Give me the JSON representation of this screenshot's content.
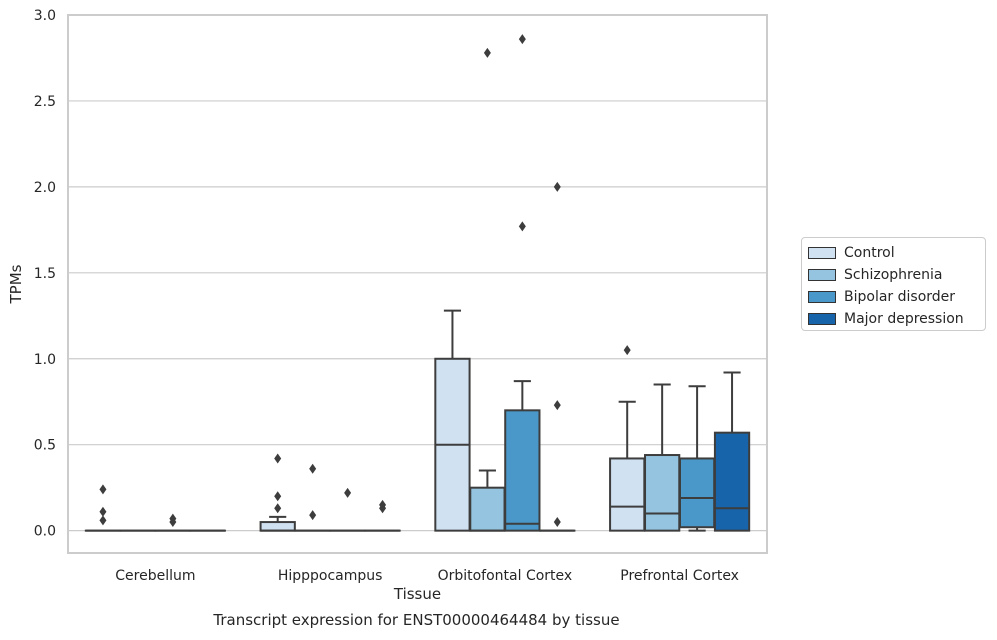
{
  "caption": "Transcript expression for ENST00000464484 by tissue",
  "chart_data": {
    "type": "box",
    "xlabel": "Tissue",
    "ylabel": "TPMs",
    "ylim": [
      -0.13,
      3.0
    ],
    "yticks": [
      "0.0",
      "0.5",
      "1.0",
      "1.5",
      "2.0",
      "2.5",
      "3.0"
    ],
    "grid": "horizontal",
    "legend_position": "right",
    "categories": [
      "Cerebellum",
      "Hipppocampus",
      "Orbitofontal Cortex",
      "Prefrontal Cortex"
    ],
    "series": [
      {
        "name": "Control",
        "color": "#d0e1f2",
        "boxes": [
          {
            "q1": 0,
            "median": 0,
            "q3": 0,
            "whisker_low": 0,
            "whisker_high": 0,
            "outliers": [
              0.24,
              0.11,
              0.06
            ]
          },
          {
            "q1": 0,
            "median": 0,
            "q3": 0.05,
            "whisker_low": 0,
            "whisker_high": 0.08,
            "outliers": [
              0.42,
              0.2,
              0.13
            ]
          },
          {
            "q1": 0,
            "median": 0.5,
            "q3": 1.0,
            "whisker_low": 0,
            "whisker_high": 1.28,
            "outliers": []
          },
          {
            "q1": 0,
            "median": 0.14,
            "q3": 0.42,
            "whisker_low": 0,
            "whisker_high": 0.75,
            "outliers": [
              1.05
            ]
          }
        ]
      },
      {
        "name": "Schizophrenia",
        "color": "#94c4df",
        "boxes": [
          {
            "q1": 0,
            "median": 0,
            "q3": 0,
            "whisker_low": 0,
            "whisker_high": 0,
            "outliers": []
          },
          {
            "q1": 0,
            "median": 0,
            "q3": 0,
            "whisker_low": 0,
            "whisker_high": 0,
            "outliers": [
              0.36,
              0.09
            ]
          },
          {
            "q1": 0,
            "median": 0,
            "q3": 0.25,
            "whisker_low": 0,
            "whisker_high": 0.35,
            "outliers": [
              2.78
            ]
          },
          {
            "q1": 0,
            "median": 0.1,
            "q3": 0.44,
            "whisker_low": 0,
            "whisker_high": 0.85,
            "outliers": []
          }
        ]
      },
      {
        "name": "Bipolar disorder",
        "color": "#4a98c9",
        "boxes": [
          {
            "q1": 0,
            "median": 0,
            "q3": 0,
            "whisker_low": 0,
            "whisker_high": 0,
            "outliers": [
              0.07,
              0.05
            ]
          },
          {
            "q1": 0,
            "median": 0,
            "q3": 0,
            "whisker_low": 0,
            "whisker_high": 0,
            "outliers": [
              0.22
            ]
          },
          {
            "q1": 0,
            "median": 0.04,
            "q3": 0.7,
            "whisker_low": 0,
            "whisker_high": 0.87,
            "outliers": [
              2.86,
              1.77
            ]
          },
          {
            "q1": 0.02,
            "median": 0.19,
            "q3": 0.42,
            "whisker_low": 0,
            "whisker_high": 0.84,
            "outliers": []
          }
        ]
      },
      {
        "name": "Major depression",
        "color": "#1764ab",
        "boxes": [
          {
            "q1": 0,
            "median": 0,
            "q3": 0,
            "whisker_low": 0,
            "whisker_high": 0,
            "outliers": []
          },
          {
            "q1": 0,
            "median": 0,
            "q3": 0,
            "whisker_low": 0,
            "whisker_high": 0,
            "outliers": [
              0.15,
              0.13
            ]
          },
          {
            "q1": 0,
            "median": 0,
            "q3": 0,
            "whisker_low": 0,
            "whisker_high": 0,
            "outliers": [
              2.0,
              0.73,
              0.05
            ]
          },
          {
            "q1": 0,
            "median": 0.13,
            "q3": 0.57,
            "whisker_low": 0,
            "whisker_high": 0.92,
            "outliers": []
          }
        ]
      }
    ]
  }
}
